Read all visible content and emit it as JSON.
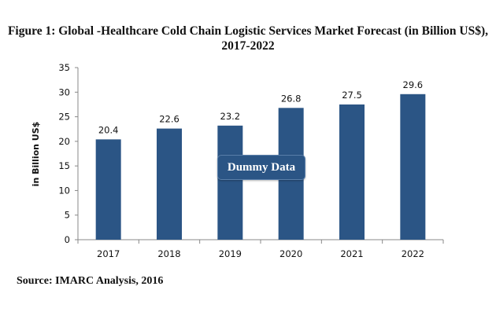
{
  "title_line1": "Figure 1: Global -Healthcare Cold Chain Logistic Services Market Forecast (in Billion US$),",
  "title_line2": "2017-2022",
  "source": "Source: IMARC Analysis, 2016",
  "watermark": "Dummy Data",
  "chart_data": {
    "type": "bar",
    "title": "Figure 1: Global -Healthcare Cold Chain Logistic Services Market Forecast (in Billion US$), 2017-2022",
    "categories": [
      "2017",
      "2018",
      "2019",
      "2020",
      "2021",
      "2022"
    ],
    "values": [
      20.4,
      22.6,
      23.2,
      26.8,
      27.5,
      29.6
    ],
    "data_labels": [
      "20.4",
      "22.6",
      "23.2",
      "26.8",
      "27.5",
      "29.6"
    ],
    "xlabel": "",
    "ylabel": "in  Billion US$",
    "ylim": [
      0,
      35
    ],
    "yticks": [
      0,
      5,
      10,
      15,
      20,
      25,
      30,
      35
    ],
    "grid": false,
    "legend": "none",
    "bar_color": "#2b5585"
  }
}
